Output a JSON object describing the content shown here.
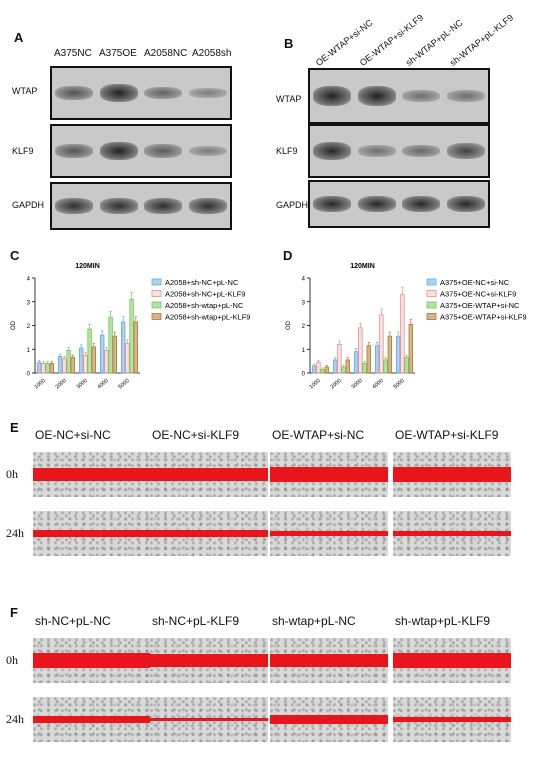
{
  "panelA": {
    "label": "A",
    "lanes": [
      "A375NC",
      "A375OE",
      "A2058NC",
      "A2058sh"
    ],
    "rows": [
      {
        "name": "WTAP",
        "intensity": [
          0.55,
          0.95,
          0.45,
          0.25
        ]
      },
      {
        "name": "KLF9",
        "intensity": [
          0.55,
          0.95,
          0.5,
          0.25
        ]
      },
      {
        "name": "GAPDH",
        "intensity": [
          0.85,
          0.85,
          0.85,
          0.85
        ]
      }
    ]
  },
  "panelB": {
    "label": "B",
    "lanes": [
      "OE-WTAP+si-NC",
      "OE-WTAP+si-KLF9",
      "sh-WTAP+pL-NC",
      "sh-WTAP+pL-KLF9"
    ],
    "rows": [
      {
        "name": "WTAP",
        "intensity": [
          0.95,
          0.95,
          0.35,
          0.35
        ]
      },
      {
        "name": "KLF9",
        "intensity": [
          0.9,
          0.35,
          0.4,
          0.7
        ]
      },
      {
        "name": "GAPDH",
        "intensity": [
          0.9,
          0.9,
          0.9,
          0.9
        ]
      }
    ]
  },
  "chart_data": [
    {
      "panel": "C",
      "type": "bar",
      "title": "120MIN",
      "ylabel": "OD",
      "ylim": [
        0,
        4
      ],
      "yticks": [
        "0",
        "1",
        "2",
        "3",
        "4"
      ],
      "categories": [
        "1000",
        "2000",
        "3000",
        "4000",
        "5000"
      ],
      "colors": [
        "#6aa9e6",
        "#f08c8c",
        "#76c95a",
        "#b07a2e"
      ],
      "series": [
        {
          "name": "A2058+sh-NC+pL-NC",
          "values": [
            0.45,
            0.7,
            1.05,
            1.6,
            2.15
          ]
        },
        {
          "name": "A2058+sh-NC+pL-KLF9",
          "values": [
            0.4,
            0.6,
            0.75,
            0.95,
            1.25
          ]
        },
        {
          "name": "A2058+sh-wtap+pL-NC",
          "values": [
            0.4,
            0.95,
            1.85,
            2.35,
            3.1
          ]
        },
        {
          "name": "A2058+sh-wtap+pL-KLF9",
          "values": [
            0.4,
            0.65,
            1.1,
            1.55,
            2.15
          ]
        }
      ]
    },
    {
      "panel": "D",
      "type": "bar",
      "title": "120MIN",
      "ylabel": "OD",
      "ylim": [
        0,
        4
      ],
      "yticks": [
        "0",
        "1",
        "2",
        "3",
        "4"
      ],
      "categories": [
        "1000",
        "2000",
        "3000",
        "4000",
        "5000"
      ],
      "colors": [
        "#6aa9e6",
        "#f08c8c",
        "#76c95a",
        "#b07a2e"
      ],
      "series": [
        {
          "name": "A375+OE-NC+si-NC",
          "values": [
            0.3,
            0.55,
            0.9,
            1.15,
            1.55
          ]
        },
        {
          "name": "A375+OE-NC+si-KLF9",
          "values": [
            0.45,
            1.2,
            1.9,
            2.45,
            3.3
          ]
        },
        {
          "name": "A375+OE-WTAP+si-NC",
          "values": [
            0.15,
            0.25,
            0.4,
            0.55,
            0.65
          ]
        },
        {
          "name": "A375+OE-WTAP+si-KLF9",
          "values": [
            0.25,
            0.55,
            1.15,
            1.55,
            2.05
          ]
        }
      ]
    }
  ],
  "panelE": {
    "label": "E",
    "columns": [
      "OE-NC+si-NC",
      "OE-NC+si-KLF9",
      "OE-WTAP+si-NC",
      "OE-WTAP+si-KLF9"
    ],
    "times": [
      "0h",
      "24h"
    ],
    "wound_fraction": [
      [
        0.3,
        0.3,
        0.34,
        0.34
      ],
      [
        0.16,
        0.17,
        0.09,
        0.11
      ]
    ]
  },
  "panelF": {
    "label": "F",
    "columns": [
      "sh-NC+pL-NC",
      "sh-NC+pL-KLF9",
      "sh-wtap+pL-NC",
      "sh-wtap+pL-KLF9"
    ],
    "times": [
      "0h",
      "24h"
    ],
    "wound_fraction": [
      [
        0.32,
        0.28,
        0.3,
        0.32
      ],
      [
        0.16,
        0.07,
        0.2,
        0.09
      ]
    ]
  }
}
